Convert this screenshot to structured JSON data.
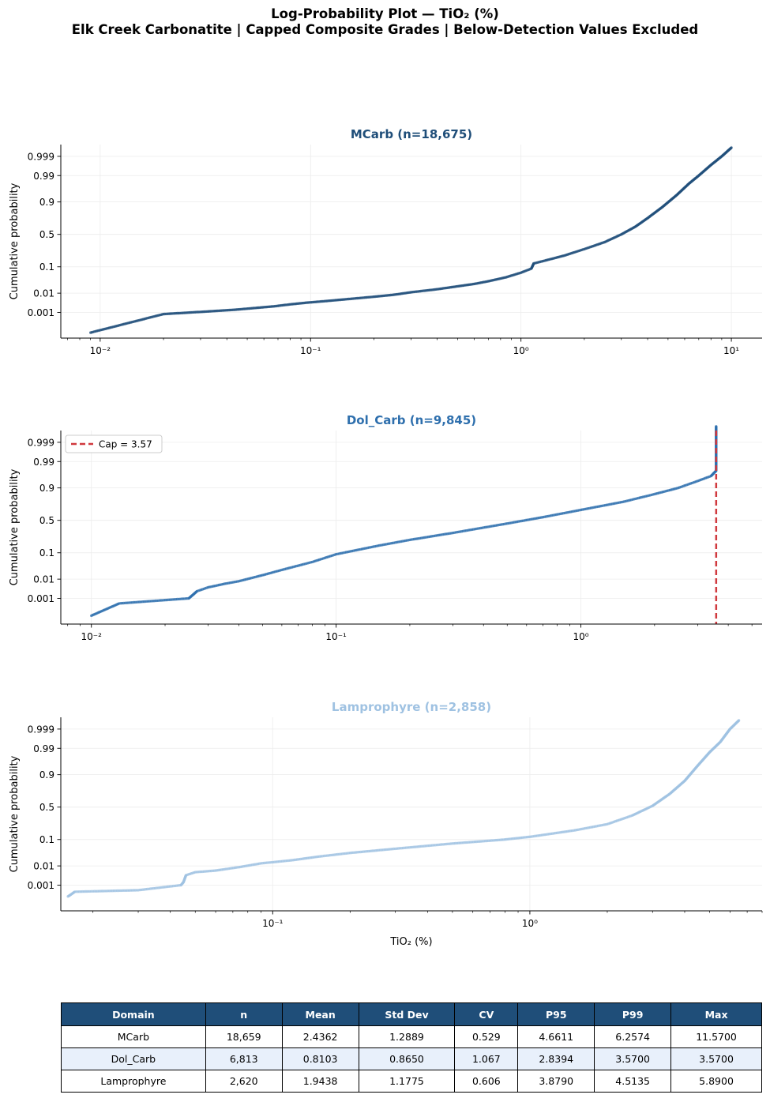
{
  "figure": {
    "title_line1": "Log-Probability Plot — TiO₂ (%)",
    "title_line2": "Elk Creek Carbonatite  |  Capped Composite Grades  |  Below-Detection Values Excluded"
  },
  "chart_data": [
    {
      "type": "scatter",
      "title": "MCarb (n=18,675)",
      "title_color": "#1f4e79",
      "point_color": "#1f4e79",
      "xlabel": "",
      "ylabel": "Cumulative probability",
      "xscale": "log",
      "yscale": "probability",
      "xlim": [
        0.0065,
        14
      ],
      "x_ticks": [
        {
          "value": 0.01,
          "label": "10⁻²"
        },
        {
          "value": 0.1,
          "label": "10⁻¹"
        },
        {
          "value": 1,
          "label": "10⁰"
        },
        {
          "value": 10,
          "label": "10¹"
        }
      ],
      "y_ticks": [
        {
          "value": 0.001,
          "label": "0.001"
        },
        {
          "value": 0.01,
          "label": "0.01"
        },
        {
          "value": 0.1,
          "label": "0.1"
        },
        {
          "value": 0.5,
          "label": "0.5"
        },
        {
          "value": 0.9,
          "label": "0.9"
        },
        {
          "value": 0.99,
          "label": "0.99"
        },
        {
          "value": 0.999,
          "label": "0.999"
        }
      ],
      "grid": true,
      "points": [
        [
          0.009,
          5e-05
        ],
        [
          0.02,
          0.0008
        ],
        [
          0.031,
          0.0011
        ],
        [
          0.043,
          0.0014
        ],
        [
          0.055,
          0.0018
        ],
        [
          0.067,
          0.0022
        ],
        [
          0.08,
          0.0028
        ],
        [
          0.095,
          0.0034
        ],
        [
          0.12,
          0.0042
        ],
        [
          0.15,
          0.0052
        ],
        [
          0.2,
          0.0068
        ],
        [
          0.25,
          0.0085
        ],
        [
          0.3,
          0.011
        ],
        [
          0.4,
          0.015
        ],
        [
          0.5,
          0.02
        ],
        [
          0.6,
          0.025
        ],
        [
          0.7,
          0.032
        ],
        [
          0.85,
          0.045
        ],
        [
          1.0,
          0.065
        ],
        [
          1.12,
          0.088
        ],
        [
          1.15,
          0.125
        ],
        [
          1.3,
          0.15
        ],
        [
          1.6,
          0.2
        ],
        [
          2.0,
          0.28
        ],
        [
          2.5,
          0.38
        ],
        [
          3.0,
          0.5
        ],
        [
          3.5,
          0.62
        ],
        [
          4.0,
          0.74
        ],
        [
          4.7,
          0.86
        ],
        [
          5.5,
          0.94
        ],
        [
          6.3,
          0.978
        ],
        [
          7.0,
          0.99
        ],
        [
          8.0,
          0.997
        ],
        [
          9.0,
          0.999
        ],
        [
          10.0,
          0.9997
        ]
      ]
    },
    {
      "type": "scatter",
      "title": "Dol_Carb (n=9,845)",
      "title_color": "#2e6fad",
      "point_color": "#2e6fad",
      "xlabel": "",
      "ylabel": "Cumulative probability",
      "xscale": "log",
      "yscale": "probability",
      "xlim": [
        0.0075,
        5.5
      ],
      "x_ticks": [
        {
          "value": 0.01,
          "label": "10⁻²"
        },
        {
          "value": 0.1,
          "label": "10⁻¹"
        },
        {
          "value": 1,
          "label": "10⁰"
        }
      ],
      "y_ticks": [
        {
          "value": 0.001,
          "label": "0.001"
        },
        {
          "value": 0.01,
          "label": "0.01"
        },
        {
          "value": 0.1,
          "label": "0.1"
        },
        {
          "value": 0.5,
          "label": "0.5"
        },
        {
          "value": 0.9,
          "label": "0.9"
        },
        {
          "value": 0.99,
          "label": "0.99"
        },
        {
          "value": 0.999,
          "label": "0.999"
        }
      ],
      "grid": true,
      "cap": {
        "value": 3.57,
        "label": "Cap = 3.57",
        "color": "#d0393e"
      },
      "legend": "top-left",
      "points": [
        [
          0.01,
          8e-05
        ],
        [
          0.013,
          0.0005
        ],
        [
          0.025,
          0.001
        ],
        [
          0.027,
          0.0025
        ],
        [
          0.03,
          0.004
        ],
        [
          0.035,
          0.006
        ],
        [
          0.04,
          0.008
        ],
        [
          0.05,
          0.015
        ],
        [
          0.06,
          0.025
        ],
        [
          0.08,
          0.05
        ],
        [
          0.1,
          0.09
        ],
        [
          0.15,
          0.16
        ],
        [
          0.2,
          0.22
        ],
        [
          0.3,
          0.31
        ],
        [
          0.5,
          0.45
        ],
        [
          0.7,
          0.55
        ],
        [
          1.0,
          0.66
        ],
        [
          1.5,
          0.77
        ],
        [
          2.0,
          0.85
        ],
        [
          2.5,
          0.9
        ],
        [
          3.0,
          0.94
        ],
        [
          3.4,
          0.96
        ],
        [
          3.57,
          0.975
        ],
        [
          3.57,
          0.99
        ],
        [
          3.57,
          0.999
        ],
        [
          3.57,
          0.9999
        ]
      ]
    },
    {
      "type": "scatter",
      "title": "Lamprophyre (n=2,858)",
      "title_color": "#9fc2e2",
      "point_color": "#9fc2e2",
      "xlabel": "TiO₂ (%)",
      "ylabel": "Cumulative probability",
      "xscale": "log",
      "yscale": "probability",
      "xlim": [
        0.015,
        8
      ],
      "x_ticks": [
        {
          "value": 0.1,
          "label": "10⁻¹"
        },
        {
          "value": 1,
          "label": "10⁰"
        }
      ],
      "y_ticks": [
        {
          "value": 0.001,
          "label": "0.001"
        },
        {
          "value": 0.01,
          "label": "0.01"
        },
        {
          "value": 0.1,
          "label": "0.1"
        },
        {
          "value": 0.5,
          "label": "0.5"
        },
        {
          "value": 0.9,
          "label": "0.9"
        },
        {
          "value": 0.99,
          "label": "0.99"
        },
        {
          "value": 0.999,
          "label": "0.999"
        }
      ],
      "grid": true,
      "points": [
        [
          0.016,
          0.0002
        ],
        [
          0.017,
          0.0004
        ],
        [
          0.03,
          0.0005
        ],
        [
          0.044,
          0.001
        ],
        [
          0.045,
          0.0015
        ],
        [
          0.046,
          0.0035
        ],
        [
          0.05,
          0.005
        ],
        [
          0.06,
          0.006
        ],
        [
          0.075,
          0.009
        ],
        [
          0.09,
          0.013
        ],
        [
          0.12,
          0.018
        ],
        [
          0.15,
          0.025
        ],
        [
          0.2,
          0.035
        ],
        [
          0.3,
          0.05
        ],
        [
          0.5,
          0.075
        ],
        [
          0.8,
          0.1
        ],
        [
          1.0,
          0.12
        ],
        [
          1.5,
          0.18
        ],
        [
          2.0,
          0.25
        ],
        [
          2.5,
          0.37
        ],
        [
          3.0,
          0.52
        ],
        [
          3.5,
          0.7
        ],
        [
          4.0,
          0.85
        ],
        [
          4.5,
          0.95
        ],
        [
          5.0,
          0.985
        ],
        [
          5.5,
          0.995
        ],
        [
          6.0,
          0.999
        ],
        [
          6.5,
          0.9997
        ]
      ]
    }
  ],
  "table": {
    "headers": [
      "Domain",
      "n",
      "Mean",
      "Std Dev",
      "CV",
      "P95",
      "P99",
      "Max"
    ],
    "rows": [
      [
        "MCarb",
        "18,659",
        "2.4362",
        "1.2889",
        "0.529",
        "4.6611",
        "6.2574",
        "11.5700"
      ],
      [
        "Dol_Carb",
        "6,813",
        "0.8103",
        "0.8650",
        "1.067",
        "2.8394",
        "3.5700",
        "3.5700"
      ],
      [
        "Lamprophyre",
        "2,620",
        "1.9438",
        "1.1775",
        "0.606",
        "3.8790",
        "4.5135",
        "5.8900"
      ]
    ]
  }
}
